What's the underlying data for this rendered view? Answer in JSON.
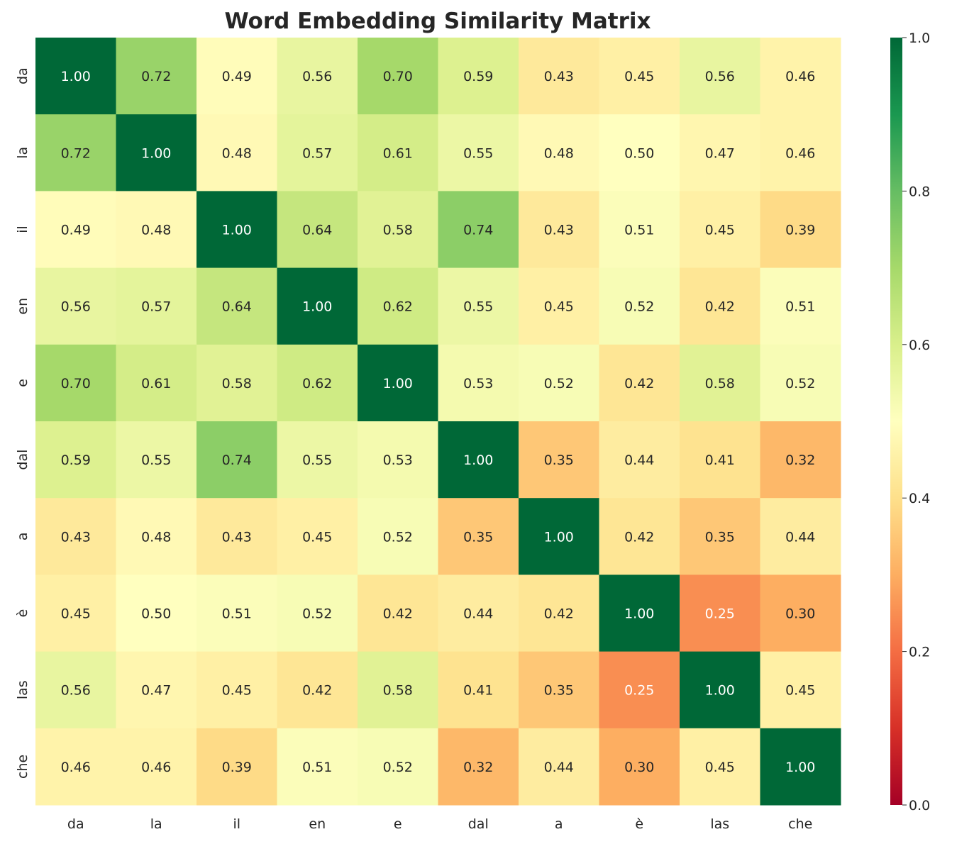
{
  "chart_data": {
    "type": "heatmap",
    "title": "Word Embedding Similarity Matrix",
    "x_labels": [
      "da",
      "la",
      "il",
      "en",
      "e",
      "dal",
      "a",
      "è",
      "las",
      "che"
    ],
    "y_labels": [
      "da",
      "la",
      "il",
      "en",
      "e",
      "dal",
      "a",
      "è",
      "las",
      "che"
    ],
    "values": [
      [
        1.0,
        0.72,
        0.49,
        0.56,
        0.7,
        0.59,
        0.43,
        0.45,
        0.56,
        0.46
      ],
      [
        0.72,
        1.0,
        0.48,
        0.57,
        0.61,
        0.55,
        0.48,
        0.5,
        0.47,
        0.46
      ],
      [
        0.49,
        0.48,
        1.0,
        0.64,
        0.58,
        0.74,
        0.43,
        0.51,
        0.45,
        0.39
      ],
      [
        0.56,
        0.57,
        0.64,
        1.0,
        0.62,
        0.55,
        0.45,
        0.52,
        0.42,
        0.51
      ],
      [
        0.7,
        0.61,
        0.58,
        0.62,
        1.0,
        0.53,
        0.52,
        0.42,
        0.58,
        0.52
      ],
      [
        0.59,
        0.55,
        0.74,
        0.55,
        0.53,
        1.0,
        0.35,
        0.44,
        0.41,
        0.32
      ],
      [
        0.43,
        0.48,
        0.43,
        0.45,
        0.52,
        0.35,
        1.0,
        0.42,
        0.35,
        0.44
      ],
      [
        0.45,
        0.5,
        0.51,
        0.52,
        0.42,
        0.44,
        0.42,
        1.0,
        0.25,
        0.3
      ],
      [
        0.56,
        0.47,
        0.45,
        0.42,
        0.58,
        0.41,
        0.35,
        0.25,
        1.0,
        0.45
      ],
      [
        0.46,
        0.46,
        0.39,
        0.51,
        0.52,
        0.32,
        0.44,
        0.3,
        0.45,
        1.0
      ]
    ],
    "colormap": "RdYlGn",
    "colormap_stops": [
      "#a50026",
      "#d73027",
      "#f46d43",
      "#fdae61",
      "#fee08b",
      "#ffffbf",
      "#d9ef8b",
      "#a6d96a",
      "#66bd63",
      "#1a9850",
      "#006837"
    ],
    "vmin": 0.0,
    "vmax": 1.0,
    "colorbar_ticks": [
      "0.0",
      "0.2",
      "0.4",
      "0.6",
      "0.8",
      "1.0"
    ],
    "annotation_format": "2 decimals",
    "grid": false,
    "legend": "colorbar right"
  }
}
